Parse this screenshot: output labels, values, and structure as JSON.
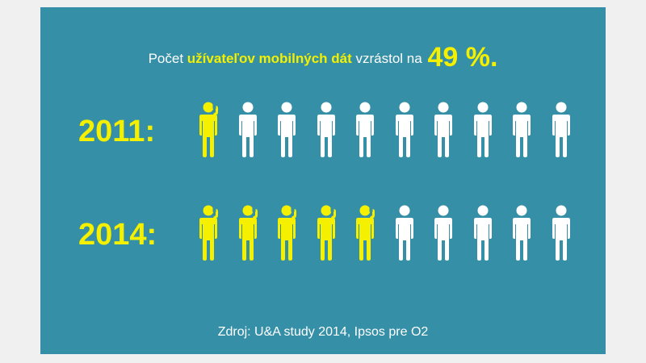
{
  "headline": {
    "prefix": "Počet",
    "highlight": "užívateľov mobilných dát",
    "middle": "vzrástol na",
    "percentage": "49 %."
  },
  "rows": [
    {
      "year_label": "2011:",
      "highlighted_count": 1,
      "total": 10
    },
    {
      "year_label": "2014:",
      "highlighted_count": 5,
      "total": 10
    }
  ],
  "colors": {
    "background": "#358fa6",
    "highlight": "#f4f000",
    "person_default": "#ffffff"
  },
  "icons": {
    "highlighted": "person-with-phone-icon",
    "default": "person-icon"
  },
  "source": "Zdroj: U&A study 2014, Ipsos pre O2"
}
